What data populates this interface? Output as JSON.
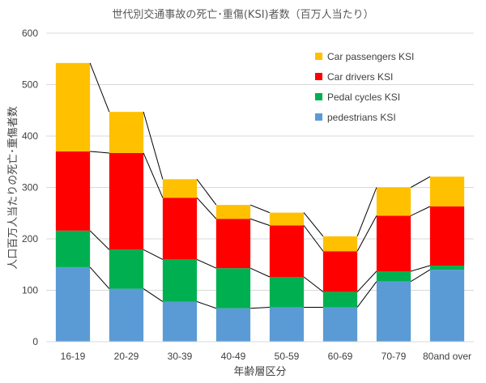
{
  "chart_data": {
    "type": "bar",
    "stacked": true,
    "title": "世代別交通事故の死亡･重傷(KSI)者数（百万人当たり）",
    "xlabel": "年齢層区分",
    "ylabel": "人口百万人当たりの死亡･重傷者数",
    "ylim": [
      0,
      600
    ],
    "yticks": [
      0,
      100,
      200,
      300,
      400,
      500,
      600
    ],
    "grid": true,
    "legend_position": "top-right",
    "categories": [
      "16-19",
      "20-29",
      "30-39",
      "40-49",
      "50-59",
      "60-69",
      "70-79",
      "80and over"
    ],
    "series": [
      {
        "name": "pedestrians KSI",
        "color": "#5B9BD5",
        "values": [
          145,
          103,
          78,
          65,
          67,
          67,
          117,
          140
        ]
      },
      {
        "name": "Pedal cycles KSI",
        "color": "#00B050",
        "values": [
          71,
          76,
          82,
          78,
          59,
          30,
          20,
          8
        ]
      },
      {
        "name": "Car drivers KSI",
        "color": "#FF0000",
        "values": [
          154,
          188,
          120,
          96,
          100,
          79,
          108,
          115
        ]
      },
      {
        "name": "Car passengers KSI",
        "color": "#FFC000",
        "values": [
          172,
          80,
          36,
          27,
          25,
          29,
          55,
          58
        ]
      }
    ]
  }
}
